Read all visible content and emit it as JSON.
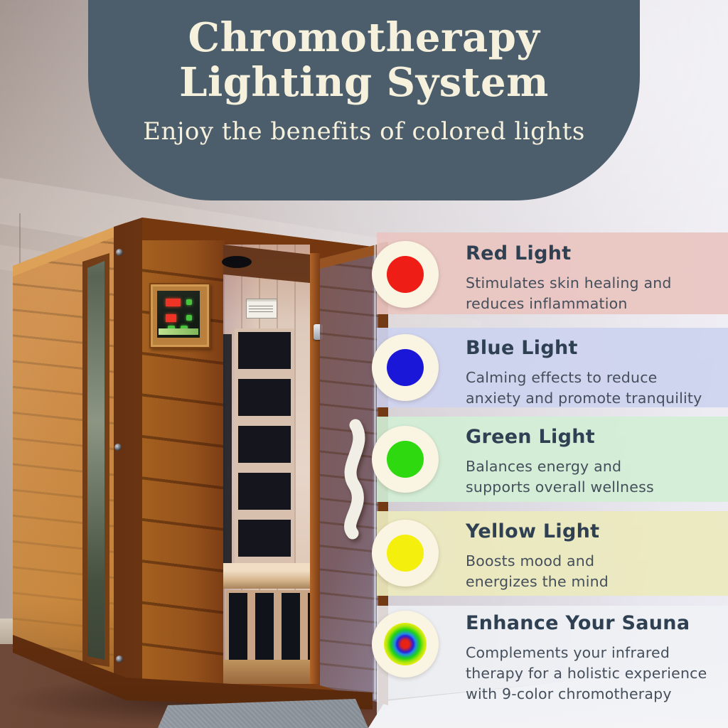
{
  "photo": {
    "alt": "Two-person wooden infrared sauna with open glass door, digital control panel and gray floor mat"
  },
  "header": {
    "title_line1": "Chromotherapy",
    "title_line2": "Lighting System",
    "subtitle": "Enjoy the benefits of colored lights",
    "background_color": "#4c5d6b",
    "text_color": "#f6f1dd"
  },
  "text_colors": {
    "feature_title": "#2e4052",
    "feature_body": "#454f5b",
    "icon_ring": "#faf5e2"
  },
  "features": [
    {
      "name": "red-light",
      "icon": "red-circle-icon",
      "dot_color": "#ee1d15",
      "band_color": "rgba(233,197,193,0.93)",
      "title": "Red Light",
      "lines": [
        "Stimulates skin healing and",
        "reduces inflammation"
      ]
    },
    {
      "name": "blue-light",
      "icon": "blue-circle-icon",
      "dot_color": "#1b17d8",
      "band_color": "rgba(205,211,239,0.93)",
      "title": "Blue Light",
      "lines": [
        "Calming effects to reduce",
        "anxiety and promote tranquility"
      ]
    },
    {
      "name": "green-light",
      "icon": "green-circle-icon",
      "dot_color": "#2ed90f",
      "band_color": "rgba(210,238,213,0.93)",
      "title": "Green Light",
      "lines": [
        "Balances energy and",
        "supports overall wellness"
      ]
    },
    {
      "name": "yellow-light",
      "icon": "yellow-circle-icon",
      "dot_color": "#f4ef0c",
      "band_color": "rgba(236,233,189,0.93)",
      "title": "Yellow Light",
      "lines": [
        "Boosts mood and",
        "energizes the mind"
      ]
    },
    {
      "name": "enhance-your-sauna",
      "icon": "rainbow-circle-icon",
      "dot_color": "rainbow",
      "band_color": "rgba(240,242,246,0.85)",
      "title": "Enhance Your Sauna",
      "lines": [
        "Complements your infrared",
        "therapy for a holistic experience",
        "with 9-color chromotherapy"
      ]
    }
  ]
}
